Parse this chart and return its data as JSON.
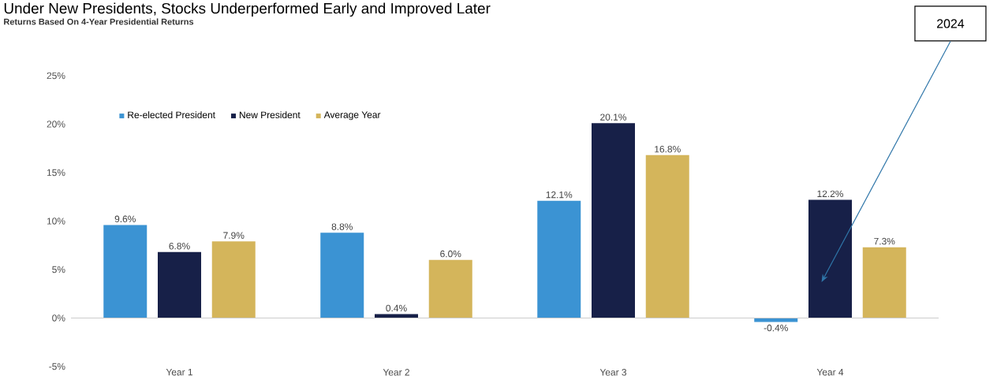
{
  "chart_data": {
    "type": "bar",
    "title": "Under New Presidents, Stocks Underperformed Early and Improved Later",
    "subtitle": "Returns Based On 4-Year Presidential Returns",
    "categories": [
      "Year 1",
      "Year 2",
      "Year 3",
      "Year 4"
    ],
    "series": [
      {
        "name": "Re-elected President",
        "color": "#3b93d3",
        "values": [
          9.6,
          8.8,
          12.1,
          -0.4
        ],
        "value_labels": [
          "9.6%",
          "8.8%",
          "12.1%",
          "-0.4%"
        ]
      },
      {
        "name": "New President",
        "color": "#172048",
        "values": [
          6.8,
          0.4,
          20.1,
          12.2
        ],
        "value_labels": [
          "6.8%",
          "0.4%",
          "20.1%",
          "12.2%"
        ]
      },
      {
        "name": "Average Year",
        "color": "#d4b55b",
        "values": [
          7.9,
          6.0,
          16.8,
          7.3
        ],
        "value_labels": [
          "7.9%",
          "6.0%",
          "16.8%",
          "7.3%"
        ]
      }
    ],
    "ylim": [
      -5,
      25
    ],
    "yticks": [
      {
        "value": -5,
        "label": "-5%"
      },
      {
        "value": 0,
        "label": "0%"
      },
      {
        "value": 5,
        "label": "5%"
      },
      {
        "value": 10,
        "label": "10%"
      },
      {
        "value": 15,
        "label": "15%"
      },
      {
        "value": 20,
        "label": "20%"
      },
      {
        "value": 25,
        "label": "25%"
      }
    ],
    "legend": "top left",
    "annotations": [
      "2024"
    ]
  }
}
